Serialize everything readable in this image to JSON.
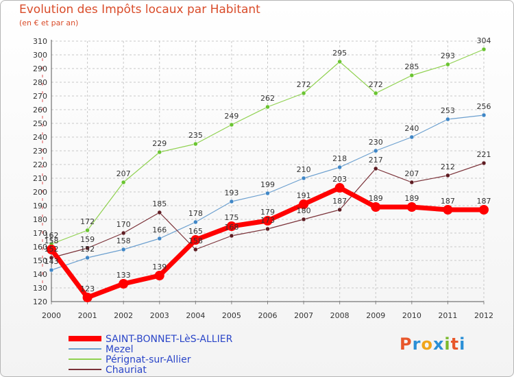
{
  "title": "Evolution des Impôts locaux par Habitant",
  "subtitle": "(en € et par an)",
  "logo": {
    "text": "Proxiti",
    "colors": [
      "#e8572b",
      "#2a8fd6",
      "#f0a51a",
      "#2a8fd6",
      "#7ab92d",
      "#e8572b",
      "#2a8fd6"
    ]
  },
  "chart_data": {
    "type": "line",
    "title": "Evolution des Impôts locaux par Habitant",
    "subtitle": "(en € et par an)",
    "x": [
      "2000",
      "2001",
      "2002",
      "2003",
      "2004",
      "2005",
      "2006",
      "2007",
      "2008",
      "2009",
      "2010",
      "2011",
      "2012"
    ],
    "ylim": [
      120,
      310
    ],
    "yticks": [
      120,
      130,
      140,
      150,
      160,
      170,
      180,
      190,
      200,
      210,
      220,
      230,
      240,
      250,
      260,
      270,
      280,
      290,
      300,
      310
    ],
    "grid": true,
    "legend_position": "bottom-left",
    "series": [
      {
        "name": "Pérignat-sur-Allier",
        "color": "#8fd14f",
        "marker": "#6ac431",
        "width": 1.2,
        "values": [
          162,
          172,
          207,
          229,
          235,
          249,
          262,
          272,
          295,
          272,
          285,
          293,
          304
        ]
      },
      {
        "name": "Mezel",
        "color": "#6b9fcf",
        "marker": "#3f86c6",
        "width": 1.2,
        "values": [
          143,
          152,
          158,
          166,
          178,
          193,
          199,
          210,
          218,
          230,
          240,
          253,
          256
        ]
      },
      {
        "name": "Chauriat",
        "color": "#7a3138",
        "marker": "#5e1c22",
        "width": 1.2,
        "values": [
          152,
          159,
          170,
          185,
          158,
          168,
          173,
          180,
          187,
          217,
          207,
          212,
          221
        ]
      },
      {
        "name": "SAINT-BONNET-LèS-ALLIER",
        "color": "#ff0000",
        "marker": "#ff0000",
        "width": 7,
        "values": [
          158,
          123,
          133,
          139,
          165,
          175,
          179,
          191,
          203,
          189,
          189,
          187,
          187
        ]
      }
    ],
    "legend": [
      "SAINT-BONNET-LèS-ALLIER",
      "Mezel",
      "Pérignat-sur-Allier",
      "Chauriat"
    ]
  }
}
